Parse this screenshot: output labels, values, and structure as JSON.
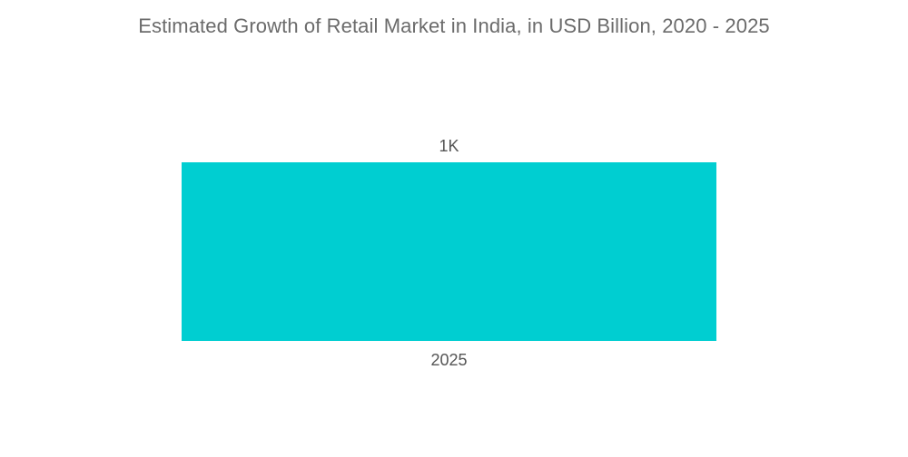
{
  "chart_data": {
    "type": "bar",
    "title": "Estimated Growth of Retail Market in India, in USD Billion, 2020 - 2025",
    "categories": [
      "2025"
    ],
    "values": [
      1000
    ],
    "data_labels": [
      "1K"
    ],
    "xlabel": "",
    "ylabel": "",
    "ylim": [
      0,
      1000
    ],
    "grid": false,
    "legend": "none",
    "colors": {
      "bar": "#00CED1"
    }
  }
}
